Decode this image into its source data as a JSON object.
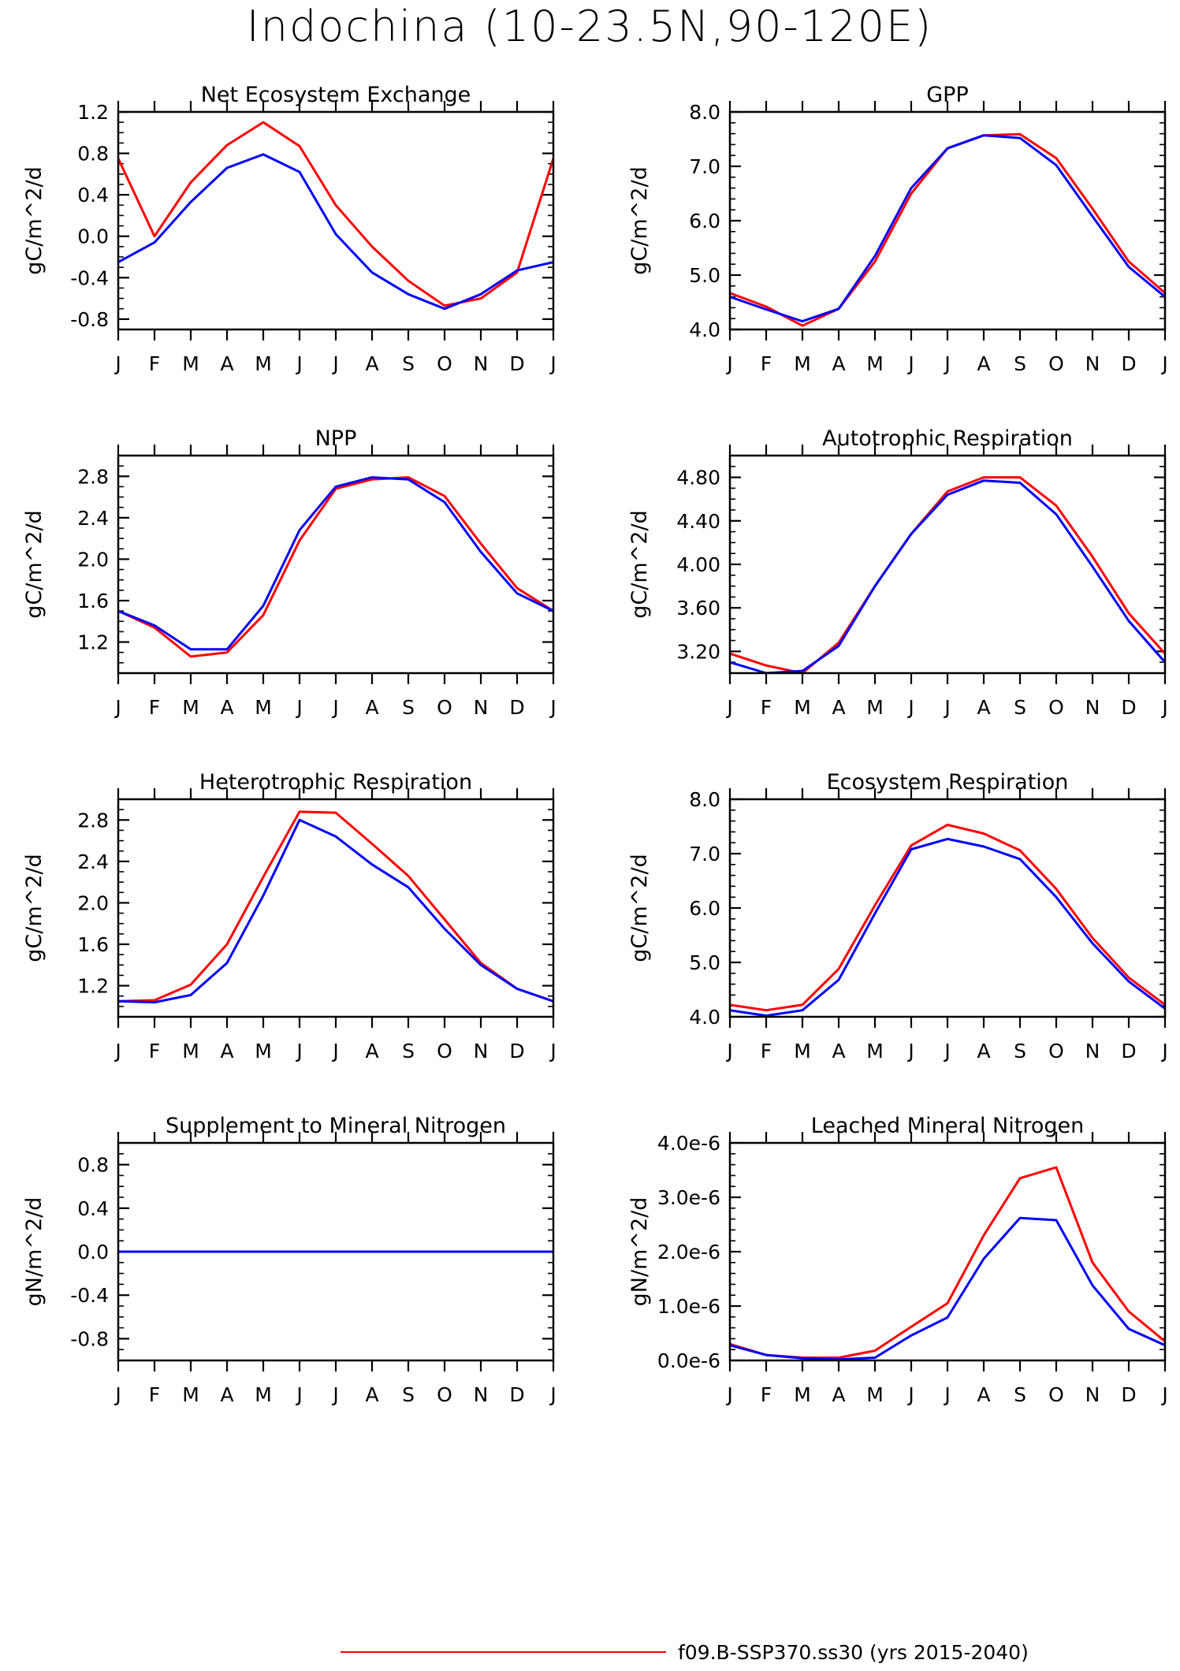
{
  "figure": {
    "title": "Indochina (10-23.5N,90-120E)",
    "legend": [
      {
        "label": "f09.B-SSP370.ss30 (yrs 2015-2040)",
        "color": "#ff0000"
      }
    ]
  },
  "series_colors": {
    "red": "#ff0000",
    "blue": "#0000ff"
  },
  "month_labels": [
    "J",
    "F",
    "M",
    "A",
    "M",
    "J",
    "J",
    "A",
    "S",
    "O",
    "N",
    "D",
    "J"
  ],
  "chart_data": [
    {
      "type": "line",
      "title": "Net Ecosystem Exchange",
      "ylabel": "gC/m^2/d",
      "x": [
        "J",
        "F",
        "M",
        "A",
        "M",
        "J",
        "J",
        "A",
        "S",
        "O",
        "N",
        "D",
        "J"
      ],
      "ylim": [
        -0.9,
        1.2
      ],
      "yticks": [
        -0.8,
        -0.4,
        0.0,
        0.4,
        0.8,
        1.2
      ],
      "ytick_labels": [
        "-0.8",
        "-0.4",
        "0.0",
        "0.4",
        "0.8",
        "1.2"
      ],
      "minor_step": 0.1,
      "series": [
        {
          "color": "#ff0000",
          "values": [
            0.75,
            0.0,
            0.52,
            0.88,
            1.1,
            0.87,
            0.3,
            -0.1,
            -0.43,
            -0.67,
            -0.6,
            -0.35,
            0.75
          ]
        },
        {
          "color": "#0000ff",
          "values": [
            -0.25,
            -0.06,
            0.33,
            0.66,
            0.79,
            0.62,
            0.02,
            -0.35,
            -0.56,
            -0.7,
            -0.56,
            -0.33,
            -0.25
          ]
        }
      ]
    },
    {
      "type": "line",
      "title": "GPP",
      "ylabel": "gC/m^2/d",
      "x": [
        "J",
        "F",
        "M",
        "A",
        "M",
        "J",
        "J",
        "A",
        "S",
        "O",
        "N",
        "D",
        "J"
      ],
      "ylim": [
        4.0,
        8.0
      ],
      "yticks": [
        4.0,
        5.0,
        6.0,
        7.0,
        8.0
      ],
      "ytick_labels": [
        "4.0",
        "5.0",
        "6.0",
        "7.0",
        "8.0"
      ],
      "minor_step": 0.2,
      "series": [
        {
          "color": "#ff0000",
          "values": [
            4.67,
            4.42,
            4.07,
            4.38,
            5.25,
            6.5,
            7.33,
            7.57,
            7.59,
            7.15,
            6.22,
            5.25,
            4.67
          ]
        },
        {
          "color": "#0000ff",
          "values": [
            4.6,
            4.37,
            4.15,
            4.38,
            5.35,
            6.6,
            7.33,
            7.57,
            7.52,
            7.02,
            6.08,
            5.15,
            4.6
          ]
        }
      ]
    },
    {
      "type": "line",
      "title": "NPP",
      "ylabel": "gC/m^2/d",
      "x": [
        "J",
        "F",
        "M",
        "A",
        "M",
        "J",
        "J",
        "A",
        "S",
        "O",
        "N",
        "D",
        "J"
      ],
      "ylim": [
        0.9,
        3.0
      ],
      "yticks": [
        1.2,
        1.6,
        2.0,
        2.4,
        2.8
      ],
      "ytick_labels": [
        "1.2",
        "1.6",
        "2.0",
        "2.4",
        "2.8"
      ],
      "minor_step": 0.1,
      "series": [
        {
          "color": "#ff0000",
          "values": [
            1.5,
            1.34,
            1.06,
            1.1,
            1.46,
            2.18,
            2.68,
            2.77,
            2.79,
            2.61,
            2.15,
            1.72,
            1.5
          ]
        },
        {
          "color": "#0000ff",
          "values": [
            1.5,
            1.36,
            1.13,
            1.13,
            1.55,
            2.28,
            2.7,
            2.79,
            2.77,
            2.55,
            2.07,
            1.67,
            1.5
          ]
        }
      ]
    },
    {
      "type": "line",
      "title": "Autotrophic Respiration",
      "ylabel": "gC/m^2/d",
      "x": [
        "J",
        "F",
        "M",
        "A",
        "M",
        "J",
        "J",
        "A",
        "S",
        "O",
        "N",
        "D",
        "J"
      ],
      "ylim": [
        3.0,
        5.0
      ],
      "yticks": [
        3.2,
        3.6,
        4.0,
        4.4,
        4.8
      ],
      "ytick_labels": [
        "3.20",
        "3.60",
        "4.00",
        "4.40",
        "4.80"
      ],
      "minor_step": 0.1,
      "series": [
        {
          "color": "#ff0000",
          "values": [
            3.18,
            3.07,
            3.0,
            3.28,
            3.8,
            4.28,
            4.67,
            4.8,
            4.8,
            4.54,
            4.07,
            3.55,
            3.18
          ]
        },
        {
          "color": "#0000ff",
          "values": [
            3.1,
            3.0,
            3.02,
            3.25,
            3.8,
            4.28,
            4.64,
            4.77,
            4.75,
            4.46,
            3.98,
            3.48,
            3.1
          ]
        }
      ]
    },
    {
      "type": "line",
      "title": "Heterotrophic Respiration",
      "ylabel": "gC/m^2/d",
      "x": [
        "J",
        "F",
        "M",
        "A",
        "M",
        "J",
        "J",
        "A",
        "S",
        "O",
        "N",
        "D",
        "J"
      ],
      "ylim": [
        0.9,
        3.0
      ],
      "yticks": [
        1.2,
        1.6,
        2.0,
        2.4,
        2.8
      ],
      "ytick_labels": [
        "1.2",
        "1.6",
        "2.0",
        "2.4",
        "2.8"
      ],
      "minor_step": 0.1,
      "series": [
        {
          "color": "#ff0000",
          "values": [
            1.05,
            1.06,
            1.21,
            1.6,
            2.25,
            2.88,
            2.87,
            2.57,
            2.26,
            1.84,
            1.42,
            1.17,
            1.05
          ]
        },
        {
          "color": "#0000ff",
          "values": [
            1.05,
            1.04,
            1.11,
            1.42,
            2.07,
            2.8,
            2.64,
            2.37,
            2.15,
            1.75,
            1.4,
            1.17,
            1.05
          ]
        }
      ]
    },
    {
      "type": "line",
      "title": "Ecosystem Respiration",
      "ylabel": "gC/m^2/d",
      "x": [
        "J",
        "F",
        "M",
        "A",
        "M",
        "J",
        "J",
        "A",
        "S",
        "O",
        "N",
        "D",
        "J"
      ],
      "ylim": [
        4.0,
        8.0
      ],
      "yticks": [
        4.0,
        5.0,
        6.0,
        7.0,
        8.0
      ],
      "ytick_labels": [
        "4.0",
        "5.0",
        "6.0",
        "7.0",
        "8.0"
      ],
      "minor_step": 0.2,
      "series": [
        {
          "color": "#ff0000",
          "values": [
            4.22,
            4.12,
            4.22,
            4.88,
            6.05,
            7.15,
            7.53,
            7.37,
            7.06,
            6.35,
            5.45,
            4.72,
            4.22
          ]
        },
        {
          "color": "#0000ff",
          "values": [
            4.12,
            4.02,
            4.12,
            4.68,
            5.9,
            7.08,
            7.27,
            7.13,
            6.9,
            6.2,
            5.35,
            4.65,
            4.15
          ]
        }
      ]
    },
    {
      "type": "line",
      "title": "Supplement to Mineral Nitrogen",
      "ylabel": "gN/m^2/d",
      "x": [
        "J",
        "F",
        "M",
        "A",
        "M",
        "J",
        "J",
        "A",
        "S",
        "O",
        "N",
        "D",
        "J"
      ],
      "ylim": [
        -1.0,
        1.0
      ],
      "yticks": [
        -0.8,
        -0.4,
        0.0,
        0.4,
        0.8
      ],
      "ytick_labels": [
        "-0.8",
        "-0.4",
        "0.0",
        "0.4",
        "0.8"
      ],
      "minor_step": 0.1,
      "series": [
        {
          "color": "#ff0000",
          "values": [
            0,
            0,
            0,
            0,
            0,
            0,
            0,
            0,
            0,
            0,
            0,
            0,
            0
          ]
        },
        {
          "color": "#0000ff",
          "values": [
            0,
            0,
            0,
            0,
            0,
            0,
            0,
            0,
            0,
            0,
            0,
            0,
            0
          ]
        }
      ]
    },
    {
      "type": "line",
      "title": "Leached Mineral Nitrogen",
      "ylabel": "gN/m^2/d",
      "x": [
        "J",
        "F",
        "M",
        "A",
        "M",
        "J",
        "J",
        "A",
        "S",
        "O",
        "N",
        "D",
        "J"
      ],
      "ylim": [
        0.0,
        4e-06
      ],
      "yticks": [
        0.0,
        1e-06,
        2e-06,
        3e-06,
        4e-06
      ],
      "ytick_labels": [
        "0.0e-6",
        "1.0e-6",
        "2.0e-6",
        "3.0e-6",
        "4.0e-6"
      ],
      "minor_step": 2e-07,
      "series": [
        {
          "color": "#ff0000",
          "values": [
            3e-07,
            1e-07,
            5e-08,
            5e-08,
            1.8e-07,
            6.2e-07,
            1.05e-06,
            2.3e-06,
            3.35e-06,
            3.55e-06,
            1.8e-06,
            9e-07,
            3.5e-07
          ]
        },
        {
          "color": "#0000ff",
          "values": [
            2.8e-07,
            1e-07,
            4e-08,
            2e-08,
            5e-08,
            4.6e-07,
            7.9e-07,
            1.87e-06,
            2.62e-06,
            2.58e-06,
            1.38e-06,
            5.8e-07,
            2.8e-07
          ]
        }
      ]
    }
  ]
}
